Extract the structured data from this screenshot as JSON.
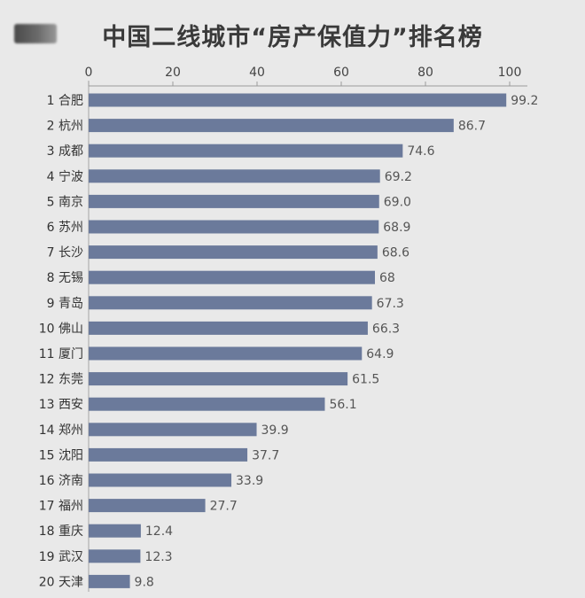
{
  "chart_data": {
    "type": "bar",
    "orientation": "horizontal",
    "title": "中国二线城市“房产保值力”排名榜",
    "xlabel": "",
    "ylabel": "",
    "xlim": [
      0,
      100
    ],
    "ticks": [
      0,
      20,
      40,
      60,
      80,
      100
    ],
    "tick_labels": [
      "0",
      "20",
      "40",
      "60",
      "80",
      "100"
    ],
    "grid": false,
    "bar_color": "#6b7a9b",
    "categories": [
      "1 合肥",
      "2 杭州",
      "3 成都",
      "4 宁波",
      "5 南京",
      "6 苏州",
      "7 长沙",
      "8 无锡",
      "9 青岛",
      "10 佛山",
      "11 厦门",
      "12 东莞",
      "13 西安",
      "14 郑州",
      "15 沈阳",
      "16 济南",
      "17 福州",
      "18 重庆",
      "19 武汉",
      "20 天津"
    ],
    "values": [
      99.2,
      86.7,
      74.6,
      69.2,
      69.0,
      68.9,
      68.6,
      68,
      67.3,
      66.3,
      64.9,
      61.5,
      56.1,
      39.9,
      37.7,
      33.9,
      27.7,
      12.4,
      12.3,
      9.8
    ],
    "value_labels": [
      "99.2",
      "86.7",
      "74.6",
      "69.2",
      "69.0",
      "68.9",
      "68.6",
      "68",
      "67.3",
      "66.3",
      "64.9",
      "61.5",
      "56.1",
      "39.9",
      "37.7",
      "33.9",
      "27.7",
      "12.4",
      "12.3",
      "9.8"
    ]
  }
}
